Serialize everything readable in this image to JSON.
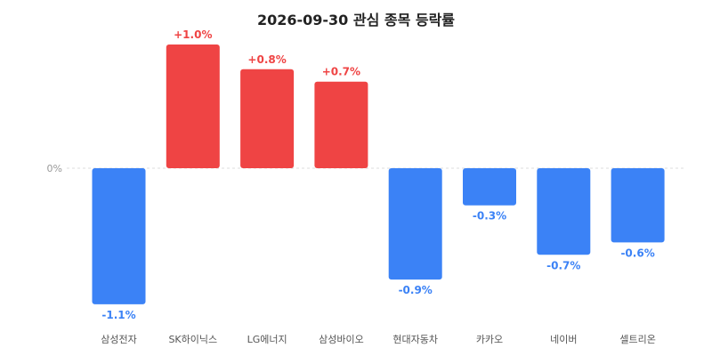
{
  "chart_data": {
    "type": "bar",
    "title": "2026-09-30 관심 종목 등락률",
    "categories": [
      "삼성전자",
      "SK하이닉스",
      "LG에너지",
      "삼성바이오",
      "현대자동차",
      "카카오",
      "네이버",
      "셀트리온"
    ],
    "values": [
      -1.1,
      1.0,
      0.8,
      0.7,
      -0.9,
      -0.3,
      -0.7,
      -0.6
    ],
    "data_labels": [
      "-1.1%",
      "+1.0%",
      "+0.8%",
      "+0.7%",
      "-0.9%",
      "-0.3%",
      "-0.7%",
      "-0.6%"
    ],
    "zero_label": "0%",
    "ylim": [
      -1.1,
      1.0
    ],
    "grid": false,
    "colors": {
      "positive": "#ef4444",
      "negative": "#3b82f6",
      "baseline": "#dddddd"
    }
  }
}
